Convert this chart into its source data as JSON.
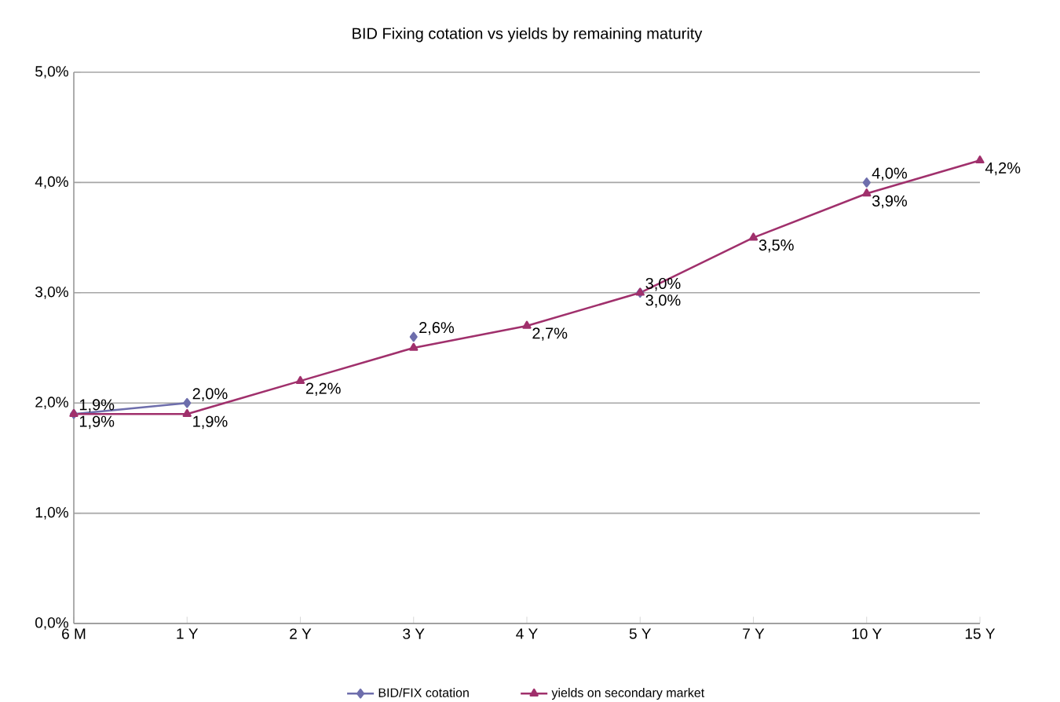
{
  "chart_data": {
    "type": "line",
    "title": "BID Fixing cotation vs yields by remaining maturity",
    "categories": [
      "6 M",
      "1 Y",
      "2 Y",
      "3 Y",
      "4 Y",
      "5 Y",
      "7 Y",
      "10 Y",
      "15 Y"
    ],
    "series": [
      {
        "name": "BID/FIX cotation",
        "color": "#6e6eac",
        "marker": "diamond",
        "values": [
          1.9,
          2.0,
          null,
          2.6,
          null,
          3.0,
          null,
          4.0,
          null
        ],
        "value_labels": [
          "1,9%",
          "2,0%",
          null,
          "2,6%",
          null,
          "3,0%",
          null,
          "4,0%",
          null
        ]
      },
      {
        "name": "yields on secondary market",
        "color": "#a0306c",
        "marker": "triangle",
        "values": [
          1.9,
          1.9,
          2.2,
          2.5,
          2.7,
          3.0,
          3.5,
          3.9,
          4.2
        ],
        "value_labels": [
          "1,9%",
          "1,9%",
          "2,2%",
          null,
          "2,7%",
          "3,0%",
          "3,5%",
          "3,9%",
          "4,2%"
        ]
      }
    ],
    "ylim": [
      0,
      5
    ],
    "yticks": [
      {
        "value": 0,
        "label": "0,0%"
      },
      {
        "value": 1,
        "label": "1,0%"
      },
      {
        "value": 2,
        "label": "2,0%"
      },
      {
        "value": 3,
        "label": "3,0%"
      },
      {
        "value": 4,
        "label": "4,0%"
      },
      {
        "value": 5,
        "label": "5,0%"
      }
    ],
    "grid": "y",
    "legend": "bottom",
    "line_style": "solid"
  }
}
